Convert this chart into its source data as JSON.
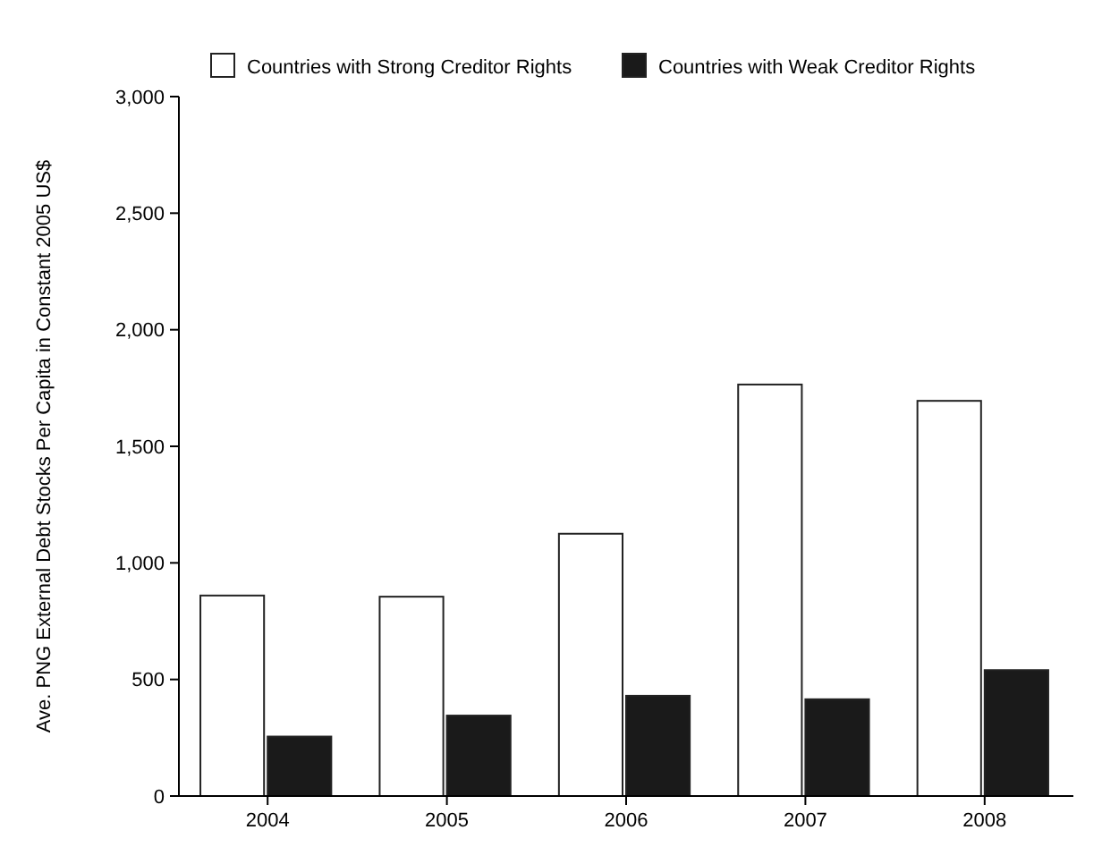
{
  "chart_data": {
    "type": "bar",
    "ylabel": "Ave. PNG External Debt Stocks Per Capita in Constant 2005 US$",
    "categories": [
      "2004",
      "2005",
      "2006",
      "2007",
      "2008"
    ],
    "series": [
      {
        "name": "Countries with Strong Creditor Rights",
        "color": "#ffffff",
        "values": [
          860,
          855,
          1125,
          1765,
          1695
        ]
      },
      {
        "name": "Countries with Weak Creditor Rights",
        "color": "#1a1a1a",
        "values": [
          255,
          345,
          430,
          415,
          540
        ]
      }
    ],
    "ylim": [
      0,
      3000
    ],
    "yticks": [
      {
        "value": 0,
        "label": "0"
      },
      {
        "value": 500,
        "label": "500"
      },
      {
        "value": 1000,
        "label": "1,000"
      },
      {
        "value": 1500,
        "label": "1,500"
      },
      {
        "value": 2000,
        "label": "2,000"
      },
      {
        "value": 2500,
        "label": "2,500"
      },
      {
        "value": 3000,
        "label": "3,000"
      }
    ],
    "grid": false,
    "legend": "top left"
  }
}
